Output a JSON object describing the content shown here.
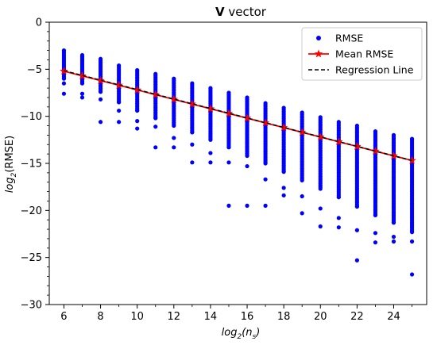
{
  "chart_data": {
    "type": "scatter",
    "title_bold": "V",
    "title_rest": " vector",
    "xlabel_base": "log",
    "xlabel_sub": "2",
    "xlabel_arg_open": "(n",
    "xlabel_arg_sub": "s",
    "xlabel_arg_close": ")",
    "ylabel_base": "log",
    "ylabel_sub": "2",
    "ylabel_arg": "(RMSE)",
    "xlim": [
      5.2,
      25.8
    ],
    "ylim": [
      -30,
      0
    ],
    "x_ticks": [
      6,
      8,
      10,
      12,
      14,
      16,
      18,
      20,
      22,
      24
    ],
    "y_ticks": [
      0,
      -5,
      -10,
      -15,
      -20,
      -25,
      -30
    ],
    "legend": {
      "position": "top-right",
      "entries": [
        "RMSE",
        "Mean RMSE",
        "Regression Line"
      ]
    },
    "colors": {
      "rmse": "#0000ff",
      "mean": "#ff0000",
      "regression": "#000000"
    },
    "series": [
      {
        "name": "RMSE",
        "kind": "scatter",
        "columns": [
          {
            "x": 6,
            "top": -3.0,
            "bottom": -6.0,
            "outliers": [
              -6.5,
              -7.6
            ]
          },
          {
            "x": 7,
            "top": -3.5,
            "bottom": -6.5,
            "outliers": [
              -7.6,
              -8.0
            ]
          },
          {
            "x": 8,
            "top": -3.9,
            "bottom": -7.4,
            "outliers": [
              -8.2,
              -10.6
            ]
          },
          {
            "x": 9,
            "top": -4.6,
            "bottom": -8.5,
            "outliers": [
              -9.4,
              -10.6
            ]
          },
          {
            "x": 10,
            "top": -5.1,
            "bottom": -9.4,
            "outliers": [
              -10.5,
              -11.3
            ]
          },
          {
            "x": 11,
            "top": -5.5,
            "bottom": -10.2,
            "outliers": [
              -11.1,
              -13.3
            ]
          },
          {
            "x": 12,
            "top": -6.0,
            "bottom": -11.0,
            "outliers": [
              -12.3,
              -13.3
            ]
          },
          {
            "x": 13,
            "top": -6.5,
            "bottom": -11.7,
            "outliers": [
              -13.0,
              -14.9
            ]
          },
          {
            "x": 14,
            "top": -7.0,
            "bottom": -12.5,
            "outliers": [
              -13.9,
              -14.9
            ]
          },
          {
            "x": 15,
            "top": -7.5,
            "bottom": -13.3,
            "outliers": [
              -14.9,
              -19.5
            ]
          },
          {
            "x": 16,
            "top": -8.0,
            "bottom": -14.2,
            "outliers": [
              -15.3,
              -19.5
            ]
          },
          {
            "x": 17,
            "top": -8.6,
            "bottom": -15.0,
            "outliers": [
              -16.7,
              -19.5
            ]
          },
          {
            "x": 18,
            "top": -9.1,
            "bottom": -15.9,
            "outliers": [
              -17.6,
              -18.4
            ]
          },
          {
            "x": 19,
            "top": -9.6,
            "bottom": -16.8,
            "outliers": [
              -18.5,
              -20.3
            ]
          },
          {
            "x": 20,
            "top": -10.1,
            "bottom": -17.7,
            "outliers": [
              -19.8,
              -21.7
            ]
          },
          {
            "x": 21,
            "top": -10.6,
            "bottom": -18.6,
            "outliers": [
              -20.8,
              -21.8
            ]
          },
          {
            "x": 22,
            "top": -11.0,
            "bottom": -19.6,
            "outliers": [
              -22.1,
              -25.3
            ]
          },
          {
            "x": 23,
            "top": -11.6,
            "bottom": -20.5,
            "outliers": [
              -22.4,
              -23.4
            ]
          },
          {
            "x": 24,
            "top": -12.0,
            "bottom": -21.3,
            "outliers": [
              -22.8,
              -23.3
            ]
          },
          {
            "x": 25,
            "top": -12.4,
            "bottom": -22.3,
            "outliers": [
              -23.3,
              -26.8
            ]
          }
        ]
      },
      {
        "name": "Mean RMSE",
        "kind": "line-star",
        "x": [
          6,
          7,
          8,
          9,
          10,
          11,
          12,
          13,
          14,
          15,
          16,
          17,
          18,
          19,
          20,
          21,
          22,
          23,
          24,
          25
        ],
        "y": [
          -5.2,
          -5.7,
          -6.2,
          -6.7,
          -7.2,
          -7.7,
          -8.2,
          -8.7,
          -9.2,
          -9.7,
          -10.2,
          -10.7,
          -11.2,
          -11.7,
          -12.2,
          -12.7,
          -13.2,
          -13.7,
          -14.2,
          -14.7
        ]
      },
      {
        "name": "Regression Line",
        "kind": "dashed",
        "x": [
          6,
          25
        ],
        "y": [
          -5.15,
          -14.7
        ]
      }
    ]
  }
}
